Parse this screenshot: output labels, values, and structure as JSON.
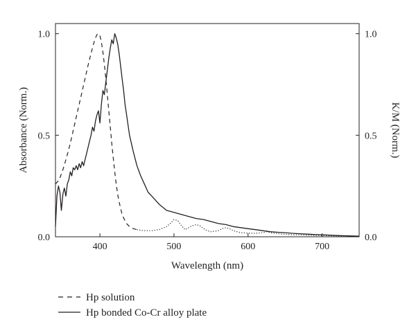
{
  "chart_data": {
    "type": "line",
    "title": "",
    "xlabel": "Wavelength (nm)",
    "ylabel": "Absorbance (Norm.)",
    "ylabel_right": "K/M (Norm.)",
    "xlim": [
      340,
      750
    ],
    "ylim": [
      0,
      1.05
    ],
    "xticks": [
      400,
      500,
      600,
      700
    ],
    "xtick_labels": [
      "400",
      "500",
      "600",
      "700"
    ],
    "yticks": [
      0.0,
      0.5,
      1.0
    ],
    "ytick_labels": [
      "0.0",
      "0.5",
      "1.0"
    ],
    "yticks_right": [
      0.0,
      0.5,
      1.0
    ],
    "ytick_labels_right": [
      "0.0",
      "0.5",
      "1.0"
    ],
    "grid": false,
    "legend_position": "below chart, left",
    "series": [
      {
        "name": "Hp solution",
        "axis": "left",
        "dash": "dashed",
        "x": [
          340,
          345,
          350,
          355,
          360,
          365,
          370,
          375,
          380,
          385,
          390,
          393,
          396,
          398,
          400,
          402,
          404,
          406,
          408,
          410,
          412,
          414,
          416,
          418,
          420,
          422,
          424,
          426,
          428,
          430,
          433,
          436,
          440,
          445,
          450
        ],
        "y": [
          0.26,
          0.28,
          0.33,
          0.39,
          0.46,
          0.54,
          0.62,
          0.7,
          0.78,
          0.86,
          0.93,
          0.97,
          0.995,
          1.0,
          0.99,
          0.96,
          0.91,
          0.85,
          0.78,
          0.7,
          0.62,
          0.54,
          0.46,
          0.39,
          0.32,
          0.26,
          0.21,
          0.17,
          0.14,
          0.11,
          0.085,
          0.065,
          0.05,
          0.04,
          0.035
        ]
      },
      {
        "name": "",
        "axis": "left",
        "dash": "dotted",
        "x": [
          450,
          460,
          470,
          480,
          490,
          495,
          500,
          505,
          510,
          515,
          520,
          525,
          530,
          535,
          540,
          545,
          550,
          560,
          565,
          570,
          575,
          580,
          590,
          600,
          610,
          620,
          625,
          630,
          640,
          650,
          660,
          670,
          680,
          690,
          700,
          710,
          720,
          730,
          740,
          750
        ],
        "y": [
          0.035,
          0.03,
          0.03,
          0.035,
          0.05,
          0.065,
          0.085,
          0.08,
          0.055,
          0.035,
          0.045,
          0.055,
          0.06,
          0.055,
          0.04,
          0.03,
          0.025,
          0.03,
          0.04,
          0.045,
          0.04,
          0.03,
          0.02,
          0.018,
          0.017,
          0.02,
          0.025,
          0.02,
          0.015,
          0.012,
          0.01,
          0.01,
          0.008,
          0.007,
          0.006,
          0.005,
          0.004,
          0.003,
          0.002,
          0.002
        ]
      },
      {
        "name": "Hp bonded Co-Cr alloy plate",
        "axis": "right",
        "dash": "solid",
        "x": [
          340,
          342,
          344,
          346,
          348,
          350,
          352,
          354,
          356,
          358,
          360,
          362,
          364,
          366,
          368,
          370,
          372,
          374,
          376,
          378,
          380,
          382,
          384,
          386,
          388,
          390,
          392,
          394,
          396,
          398,
          400,
          402,
          404,
          406,
          408,
          410,
          412,
          414,
          416,
          418,
          420,
          422,
          424,
          426,
          428,
          430,
          432,
          434,
          436,
          438,
          440,
          445,
          450,
          455,
          460,
          465,
          470,
          480,
          490,
          500,
          510,
          520,
          530,
          540,
          550,
          560,
          570,
          580,
          590,
          600,
          610,
          620,
          630,
          640,
          650,
          660,
          670,
          680,
          690,
          700,
          710,
          720,
          730,
          740,
          750
        ],
        "y": [
          0.05,
          0.2,
          0.25,
          0.22,
          0.13,
          0.21,
          0.24,
          0.2,
          0.26,
          0.28,
          0.32,
          0.3,
          0.34,
          0.33,
          0.35,
          0.33,
          0.36,
          0.34,
          0.37,
          0.35,
          0.38,
          0.41,
          0.44,
          0.47,
          0.5,
          0.54,
          0.52,
          0.57,
          0.6,
          0.62,
          0.56,
          0.65,
          0.72,
          0.7,
          0.76,
          0.82,
          0.88,
          0.93,
          0.97,
          0.95,
          1.0,
          0.98,
          0.95,
          0.9,
          0.84,
          0.78,
          0.72,
          0.65,
          0.6,
          0.55,
          0.5,
          0.42,
          0.35,
          0.3,
          0.26,
          0.22,
          0.2,
          0.16,
          0.13,
          0.12,
          0.11,
          0.1,
          0.09,
          0.085,
          0.075,
          0.065,
          0.06,
          0.05,
          0.045,
          0.04,
          0.035,
          0.03,
          0.025,
          0.022,
          0.02,
          0.017,
          0.015,
          0.013,
          0.011,
          0.01,
          0.008,
          0.006,
          0.005,
          0.004,
          0.003
        ]
      }
    ]
  },
  "legend": {
    "items": [
      {
        "label": "Hp solution",
        "dash": "dashed"
      },
      {
        "label": "Hp bonded Co-Cr alloy plate",
        "dash": "solid"
      }
    ]
  }
}
